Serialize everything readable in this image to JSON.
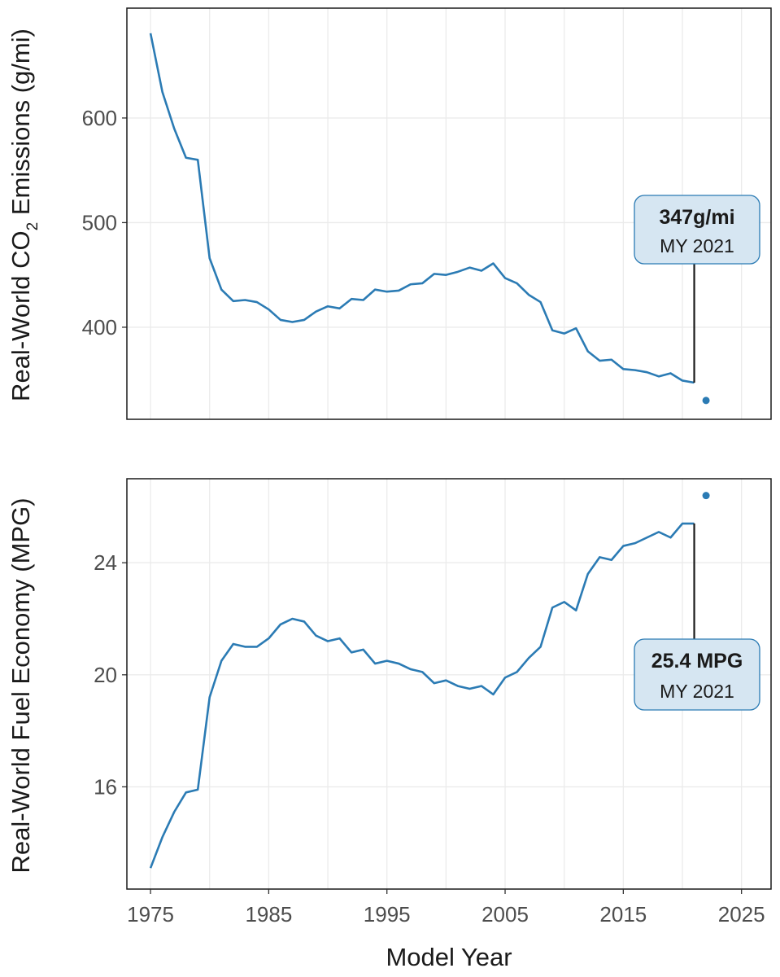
{
  "colors": {
    "line": "#2b7bb4",
    "point": "#2b7bb4",
    "callout_border": "#2b7bb4",
    "callout_fill": "#d6e6f2"
  },
  "x_axis": {
    "title": "Model Year",
    "ticks": [
      "1975",
      "1985",
      "1995",
      "2005",
      "2015",
      "2025"
    ]
  },
  "chart_data": [
    {
      "type": "line",
      "ylabel_main": "Real-World CO",
      "ylabel_sub": "2",
      "ylabel_tail": " Emissions (g/mi)",
      "xlim": [
        1973,
        2027.5
      ],
      "ylim": [
        312,
        705
      ],
      "x_ticks": [
        1975,
        1980,
        1985,
        1990,
        1995,
        2000,
        2005,
        2010,
        2015,
        2020,
        2025
      ],
      "y_ticks": [
        400,
        500,
        600
      ],
      "y_tick_labels": [
        "400",
        "500",
        "600"
      ],
      "x": [
        1975,
        1976,
        1977,
        1978,
        1979,
        1980,
        1981,
        1982,
        1983,
        1984,
        1985,
        1986,
        1987,
        1988,
        1989,
        1990,
        1991,
        1992,
        1993,
        1994,
        1995,
        1996,
        1997,
        1998,
        1999,
        2000,
        2001,
        2002,
        2003,
        2004,
        2005,
        2006,
        2007,
        2008,
        2009,
        2010,
        2011,
        2012,
        2013,
        2014,
        2015,
        2016,
        2017,
        2018,
        2019,
        2020,
        2021
      ],
      "values": [
        681,
        625,
        590,
        562,
        560,
        466,
        436,
        425,
        426,
        424,
        417,
        407,
        405,
        407,
        415,
        420,
        418,
        427,
        426,
        436,
        434,
        435,
        441,
        442,
        451,
        450,
        453,
        457,
        454,
        461,
        447,
        442,
        431,
        424,
        397,
        394,
        399,
        377,
        368,
        369,
        360,
        359,
        357,
        353,
        356,
        349,
        347
      ],
      "point": {
        "x": 2022,
        "y": 330
      },
      "callout": {
        "value": "347g/mi",
        "label": "MY 2021",
        "x": 2021,
        "y": 347
      }
    },
    {
      "type": "line",
      "ylabel": "Real-World Fuel Economy (MPG)",
      "xlim": [
        1973,
        2027.5
      ],
      "ylim": [
        12.35,
        27.0
      ],
      "x_ticks": [
        1975,
        1980,
        1985,
        1990,
        1995,
        2000,
        2005,
        2010,
        2015,
        2020,
        2025
      ],
      "y_ticks": [
        16,
        20,
        24
      ],
      "y_tick_labels": [
        "16",
        "20",
        "24"
      ],
      "x": [
        1975,
        1976,
        1977,
        1978,
        1979,
        1980,
        1981,
        1982,
        1983,
        1984,
        1985,
        1986,
        1987,
        1988,
        1989,
        1990,
        1991,
        1992,
        1993,
        1994,
        1995,
        1996,
        1997,
        1998,
        1999,
        2000,
        2001,
        2002,
        2003,
        2004,
        2005,
        2006,
        2007,
        2008,
        2009,
        2010,
        2011,
        2012,
        2013,
        2014,
        2015,
        2016,
        2017,
        2018,
        2019,
        2020,
        2021
      ],
      "values": [
        13.1,
        14.2,
        15.1,
        15.8,
        15.9,
        19.2,
        20.5,
        21.1,
        21.0,
        21.0,
        21.3,
        21.8,
        22.0,
        21.9,
        21.4,
        21.2,
        21.3,
        20.8,
        20.9,
        20.4,
        20.5,
        20.4,
        20.2,
        20.1,
        19.7,
        19.8,
        19.6,
        19.5,
        19.6,
        19.3,
        19.9,
        20.1,
        20.6,
        21.0,
        22.4,
        22.6,
        22.3,
        23.6,
        24.2,
        24.1,
        24.6,
        24.7,
        24.9,
        25.1,
        24.9,
        25.4,
        25.4
      ],
      "point": {
        "x": 2022,
        "y": 26.4
      },
      "callout": {
        "value": "25.4 MPG",
        "label": "MY 2021",
        "x": 2021,
        "y": 25.4
      }
    }
  ]
}
